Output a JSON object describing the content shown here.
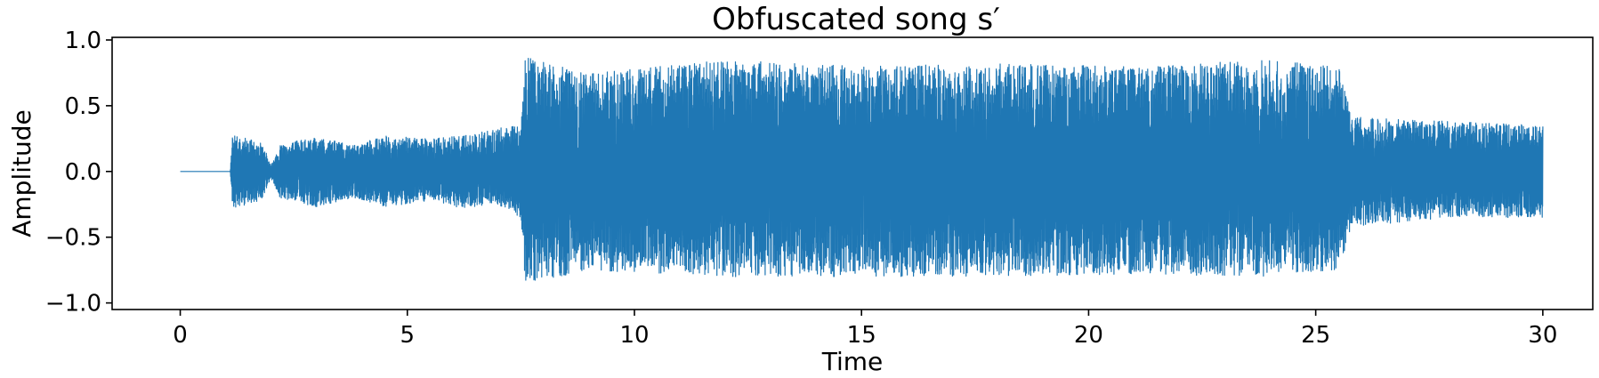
{
  "chart_data": {
    "type": "line",
    "title": "Obfuscated song s′",
    "xlabel": "Time",
    "ylabel": "Amplitude",
    "xlim": [
      -1.5,
      31.1
    ],
    "ylim": [
      -1.05,
      1.02
    ],
    "xticks": [
      0,
      5,
      10,
      15,
      20,
      25,
      30
    ],
    "yticks": [
      1.0,
      0.5,
      0.0,
      -0.5,
      -1.0
    ],
    "ytick_labels": [
      "1.0",
      "0.5",
      "0.0",
      "−0.5",
      "−1.0"
    ],
    "grid": false,
    "line_color": "#1f77b4",
    "series": [
      {
        "x_range": [
          0,
          30
        ],
        "envelope": [
          {
            "x": 0.0,
            "lo": 0.0,
            "hi": 0.0
          },
          {
            "x": 1.1,
            "lo": 0.0,
            "hi": 0.0
          },
          {
            "x": 1.15,
            "lo": -0.28,
            "hi": 0.28
          },
          {
            "x": 1.8,
            "lo": -0.22,
            "hi": 0.22
          },
          {
            "x": 2.0,
            "lo": -0.05,
            "hi": 0.05
          },
          {
            "x": 2.2,
            "lo": -0.2,
            "hi": 0.2
          },
          {
            "x": 3.0,
            "lo": -0.27,
            "hi": 0.27
          },
          {
            "x": 3.8,
            "lo": -0.2,
            "hi": 0.2
          },
          {
            "x": 4.5,
            "lo": -0.27,
            "hi": 0.27
          },
          {
            "x": 5.5,
            "lo": -0.22,
            "hi": 0.25
          },
          {
            "x": 6.2,
            "lo": -0.28,
            "hi": 0.27
          },
          {
            "x": 7.0,
            "lo": -0.25,
            "hi": 0.33
          },
          {
            "x": 7.5,
            "lo": -0.35,
            "hi": 0.35
          },
          {
            "x": 7.6,
            "lo": -0.85,
            "hi": 0.88
          },
          {
            "x": 9.0,
            "lo": -0.75,
            "hi": 0.75
          },
          {
            "x": 12.0,
            "lo": -0.8,
            "hi": 0.85
          },
          {
            "x": 15.0,
            "lo": -0.8,
            "hi": 0.8
          },
          {
            "x": 18.0,
            "lo": -0.8,
            "hi": 0.82
          },
          {
            "x": 21.0,
            "lo": -0.78,
            "hi": 0.8
          },
          {
            "x": 24.0,
            "lo": -0.8,
            "hi": 0.85
          },
          {
            "x": 25.5,
            "lo": -0.75,
            "hi": 0.8
          },
          {
            "x": 25.8,
            "lo": -0.42,
            "hi": 0.42
          },
          {
            "x": 28.0,
            "lo": -0.35,
            "hi": 0.38
          },
          {
            "x": 30.0,
            "lo": -0.35,
            "hi": 0.35
          }
        ]
      }
    ]
  }
}
